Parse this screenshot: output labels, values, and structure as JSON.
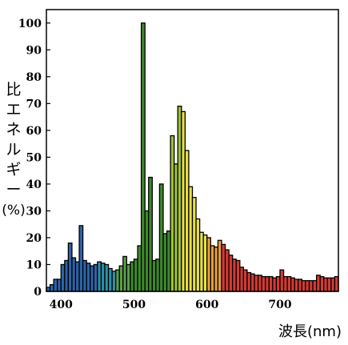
{
  "chart_data": {
    "type": "bar",
    "xlabel": "波長(nm)",
    "ylabel_text": "比エネルギー",
    "ylabel_unit": "(%)",
    "xlim": [
      380,
      780
    ],
    "ylim": [
      0,
      105
    ],
    "bin_width": 5,
    "x_ticks": [
      400,
      500,
      600,
      700
    ],
    "y_ticks": [
      0,
      10,
      20,
      30,
      40,
      50,
      60,
      70,
      80,
      90,
      100
    ],
    "x": [
      380,
      385,
      390,
      395,
      400,
      405,
      410,
      415,
      420,
      425,
      430,
      435,
      440,
      445,
      450,
      455,
      460,
      465,
      470,
      475,
      480,
      485,
      490,
      495,
      500,
      505,
      510,
      515,
      520,
      525,
      530,
      535,
      540,
      545,
      550,
      555,
      560,
      565,
      570,
      575,
      580,
      585,
      590,
      595,
      600,
      605,
      610,
      615,
      620,
      625,
      630,
      635,
      640,
      645,
      650,
      655,
      660,
      665,
      670,
      675,
      680,
      685,
      690,
      695,
      700,
      705,
      710,
      715,
      720,
      725,
      730,
      735,
      740,
      745,
      750,
      755,
      760,
      765,
      770,
      775
    ],
    "values": [
      1.5,
      2.5,
      4.5,
      4.5,
      10,
      11.5,
      18,
      12.5,
      11,
      24.5,
      11.5,
      10.5,
      9.5,
      10,
      11,
      10.5,
      10,
      8.5,
      7.5,
      8,
      9.5,
      13,
      10,
      11,
      12,
      17,
      100,
      30,
      42.5,
      11.5,
      12,
      40,
      21.5,
      22.5,
      58,
      47.5,
      69,
      67,
      52.5,
      39,
      35,
      27,
      22,
      21,
      20,
      17,
      16.5,
      19,
      17.5,
      15.5,
      13.5,
      12,
      11.5,
      9,
      8,
      7,
      6.5,
      6,
      6,
      5.5,
      5.5,
      5.5,
      5,
      5.5,
      8,
      5.5,
      5.5,
      5,
      4.5,
      4.5,
      4,
      4,
      4,
      4,
      6,
      5.5,
      5,
      5,
      5,
      5.5
    ]
  }
}
